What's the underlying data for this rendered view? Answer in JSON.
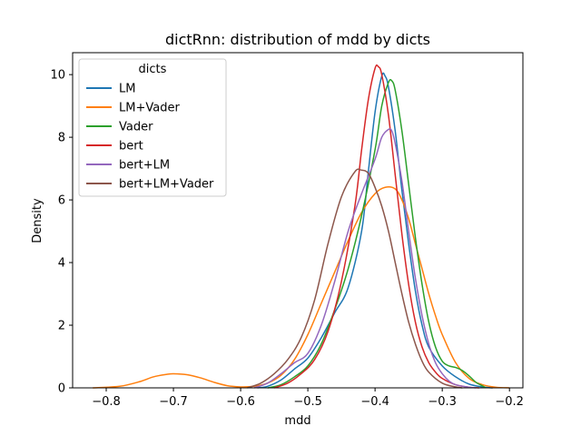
{
  "chart_data": {
    "type": "line",
    "title": "dictRnn: distribution of mdd by dicts",
    "xlabel": "mdd",
    "ylabel": "Density",
    "xlim": [
      -0.85,
      -0.18
    ],
    "ylim": [
      0,
      10.7
    ],
    "x_ticks": [
      -0.8,
      -0.7,
      -0.6,
      -0.5,
      -0.4,
      -0.3,
      -0.2
    ],
    "x_tick_labels": [
      "−0.8",
      "−0.7",
      "−0.6",
      "−0.5",
      "−0.4",
      "−0.3",
      "−0.2"
    ],
    "y_ticks": [
      0,
      2,
      4,
      6,
      8,
      10
    ],
    "y_tick_labels": [
      "0",
      "2",
      "4",
      "6",
      "8",
      "10"
    ],
    "grid": false,
    "legend": {
      "title": "dicts",
      "placement": "top-left"
    },
    "series": [
      {
        "name": "LM",
        "color": "#1f77b4",
        "x": [
          -0.575,
          -0.56,
          -0.54,
          -0.52,
          -0.5,
          -0.48,
          -0.46,
          -0.44,
          -0.42,
          -0.41,
          -0.4,
          -0.39,
          -0.385,
          -0.38,
          -0.37,
          -0.36,
          -0.35,
          -0.34,
          -0.33,
          -0.32,
          -0.3,
          -0.28,
          -0.26,
          -0.24,
          -0.225
        ],
        "y": [
          0.0,
          0.05,
          0.25,
          0.6,
          0.95,
          1.6,
          2.4,
          3.2,
          5.0,
          6.9,
          8.8,
          9.95,
          9.95,
          9.6,
          8.2,
          6.3,
          4.6,
          3.1,
          2.0,
          1.3,
          0.7,
          0.35,
          0.12,
          0.03,
          0.0
        ]
      },
      {
        "name": "LM+Vader",
        "color": "#ff7f0e",
        "x": [
          -0.82,
          -0.78,
          -0.75,
          -0.73,
          -0.71,
          -0.7,
          -0.68,
          -0.66,
          -0.64,
          -0.62,
          -0.6,
          -0.58,
          -0.56,
          -0.54,
          -0.52,
          -0.5,
          -0.48,
          -0.46,
          -0.44,
          -0.42,
          -0.4,
          -0.385,
          -0.37,
          -0.36,
          -0.35,
          -0.34,
          -0.33,
          -0.32,
          -0.31,
          -0.3,
          -0.28,
          -0.26,
          -0.24,
          -0.22,
          -0.2
        ],
        "y": [
          0.0,
          0.05,
          0.2,
          0.35,
          0.43,
          0.45,
          0.42,
          0.32,
          0.18,
          0.07,
          0.03,
          0.05,
          0.15,
          0.4,
          0.9,
          1.7,
          2.7,
          3.7,
          4.7,
          5.6,
          6.2,
          6.4,
          6.35,
          6.0,
          5.4,
          4.6,
          3.8,
          3.0,
          2.3,
          1.7,
          0.8,
          0.3,
          0.1,
          0.02,
          0.0
        ]
      },
      {
        "name": "Vader",
        "color": "#2ca02c",
        "x": [
          -0.56,
          -0.54,
          -0.52,
          -0.5,
          -0.48,
          -0.46,
          -0.44,
          -0.42,
          -0.4,
          -0.39,
          -0.38,
          -0.375,
          -0.37,
          -0.36,
          -0.35,
          -0.34,
          -0.33,
          -0.32,
          -0.31,
          -0.3,
          -0.29,
          -0.28,
          -0.27,
          -0.26,
          -0.25,
          -0.24,
          -0.235
        ],
        "y": [
          0.0,
          0.1,
          0.35,
          0.7,
          1.4,
          2.5,
          3.8,
          5.5,
          7.6,
          9.0,
          9.75,
          9.8,
          9.5,
          8.2,
          6.5,
          4.8,
          3.3,
          2.1,
          1.3,
          0.85,
          0.7,
          0.65,
          0.55,
          0.38,
          0.18,
          0.06,
          0.0
        ]
      },
      {
        "name": "bert",
        "color": "#d62728",
        "x": [
          -0.55,
          -0.53,
          -0.51,
          -0.49,
          -0.47,
          -0.45,
          -0.43,
          -0.42,
          -0.41,
          -0.4,
          -0.395,
          -0.39,
          -0.38,
          -0.37,
          -0.36,
          -0.35,
          -0.34,
          -0.33,
          -0.32,
          -0.31,
          -0.3,
          -0.28,
          -0.26,
          -0.245
        ],
        "y": [
          0.0,
          0.15,
          0.45,
          0.9,
          1.8,
          3.4,
          5.8,
          7.6,
          9.2,
          10.2,
          10.25,
          10.0,
          8.7,
          6.8,
          4.9,
          3.3,
          2.1,
          1.3,
          0.8,
          0.5,
          0.3,
          0.1,
          0.02,
          0.0
        ]
      },
      {
        "name": "bert+LM",
        "color": "#9467bd",
        "x": [
          -0.58,
          -0.56,
          -0.54,
          -0.52,
          -0.5,
          -0.48,
          -0.46,
          -0.44,
          -0.42,
          -0.4,
          -0.39,
          -0.38,
          -0.375,
          -0.37,
          -0.36,
          -0.35,
          -0.34,
          -0.33,
          -0.32,
          -0.31,
          -0.3,
          -0.29,
          -0.28,
          -0.26,
          -0.25
        ],
        "y": [
          0.0,
          0.15,
          0.45,
          0.8,
          1.1,
          2.0,
          3.4,
          5.0,
          6.2,
          7.3,
          8.0,
          8.25,
          8.2,
          7.8,
          6.6,
          5.0,
          3.5,
          2.3,
          1.4,
          0.8,
          0.45,
          0.22,
          0.1,
          0.02,
          0.0
        ]
      },
      {
        "name": "bert+LM+Vader",
        "color": "#8c564b",
        "x": [
          -0.59,
          -0.57,
          -0.55,
          -0.53,
          -0.51,
          -0.49,
          -0.47,
          -0.45,
          -0.43,
          -0.42,
          -0.41,
          -0.4,
          -0.39,
          -0.38,
          -0.37,
          -0.36,
          -0.35,
          -0.34,
          -0.33,
          -0.32,
          -0.3,
          -0.28,
          -0.27
        ],
        "y": [
          0.0,
          0.15,
          0.45,
          0.9,
          1.6,
          2.8,
          4.6,
          6.1,
          6.9,
          6.95,
          6.85,
          6.4,
          5.8,
          5.0,
          4.0,
          3.0,
          2.1,
          1.4,
          0.85,
          0.5,
          0.15,
          0.03,
          0.0
        ]
      }
    ]
  }
}
